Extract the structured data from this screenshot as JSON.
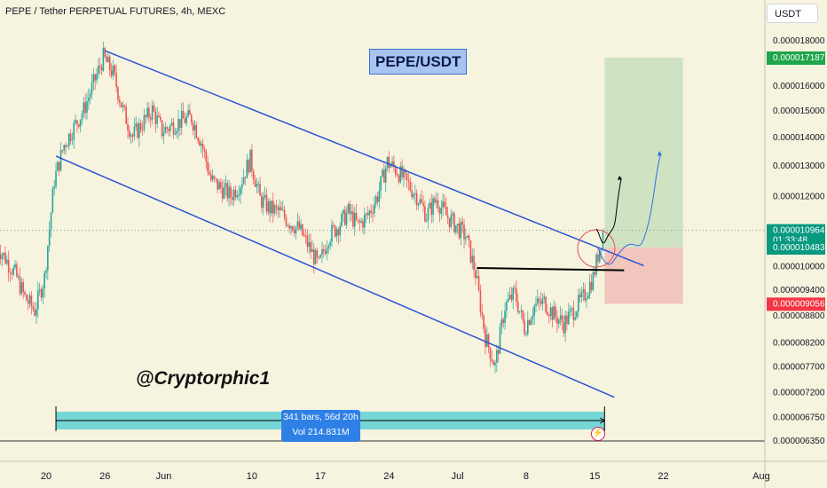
{
  "header": {
    "text": "PEPE / Tether PERPETUAL FUTURES, 4h, MEXC"
  },
  "title_badge": "PEPE/USDT",
  "watermark": "@Cryptorphic1",
  "currency_button": "USDT",
  "range_tooltip": {
    "bars": "341 bars, 56d 20h",
    "vol": "Vol 214.831M"
  },
  "colors": {
    "background": "#f6f3df",
    "up": "#26a69a",
    "down": "#ef5350",
    "channel": "#2855d6",
    "target_zone": "#cfe3c2",
    "stop_zone": "#f1c6bd",
    "range_band": "#5fd0d5",
    "label_current": "#089981",
    "label_stop": "#f23645"
  },
  "chart_data": {
    "type": "candlestick",
    "title": "PEPE / Tether PERPETUAL FUTURES, 4h, MEXC",
    "x_tick_labels": [
      "20",
      "26",
      "Jun",
      "10",
      "17",
      "24",
      "Jul",
      "8",
      "15",
      "22",
      "Aug"
    ],
    "y_tick_labels": [
      "0.000018000",
      "0.000016000",
      "0.000015000",
      "0.000014000",
      "0.000013000",
      "0.000012000",
      "0.000010000",
      "0.000009400",
      "0.000008800",
      "0.000008200",
      "0.000007700",
      "0.000007200",
      "0.000006750",
      "0.000006350"
    ],
    "y_axis_scale": "log",
    "ylim": [
      6.2e-06,
      1.85e-05
    ],
    "price_labels": {
      "target": "0.000017187",
      "current": "0.000010964",
      "countdown": "01:33:48",
      "entry": "0.000010483",
      "stop": "0.000009056"
    },
    "path_points": [
      [
        "May 15",
        1.06e-05
      ],
      [
        "May 17",
        9.8e-06
      ],
      [
        "May 18",
        9.2e-06
      ],
      [
        "May 19",
        8.9e-06
      ],
      [
        "May 20",
        9.7e-06
      ],
      [
        "May 21",
        1.25e-05
      ],
      [
        "May 22",
        1.37e-05
      ],
      [
        "May 24",
        1.5e-05
      ],
      [
        "May 26",
        1.72e-05
      ],
      [
        "May 27",
        1.65e-05
      ],
      [
        "May 28",
        1.5e-05
      ],
      [
        "May 29",
        1.4e-05
      ],
      [
        "May 31",
        1.5e-05
      ],
      [
        "Jun 1",
        1.42e-05
      ],
      [
        "Jun 3",
        1.46e-05
      ],
      [
        "Jun 4",
        1.47e-05
      ],
      [
        "Jun 5",
        1.38e-05
      ],
      [
        "Jun 6",
        1.25e-05
      ],
      [
        "Jun 8",
        1.2e-05
      ],
      [
        "Jun 9",
        1.24e-05
      ],
      [
        "Jun 10",
        1.32e-05
      ],
      [
        "Jun 11",
        1.19e-05
      ],
      [
        "Jun 12",
        1.16e-05
      ],
      [
        "Jun 13",
        1.15e-05
      ],
      [
        "Jun 14",
        1.12e-05
      ],
      [
        "Jun 15",
        1.1e-05
      ],
      [
        "Jun 16",
        1.05e-05
      ],
      [
        "Jun 17",
        1e-05
      ],
      [
        "Jun 18",
        1.08e-05
      ],
      [
        "Jun 19",
        1.11e-05
      ],
      [
        "Jun 20",
        1.15e-05
      ],
      [
        "Jun 21",
        1.11e-05
      ],
      [
        "Jun 22",
        1.14e-05
      ],
      [
        "Jun 23",
        1.2e-05
      ],
      [
        "Jun 24",
        1.31e-05
      ],
      [
        "Jun 25",
        1.28e-05
      ],
      [
        "Jun 26",
        1.24e-05
      ],
      [
        "Jun 27",
        1.2e-05
      ],
      [
        "Jun 28",
        1.14e-05
      ],
      [
        "Jun 29",
        1.19e-05
      ],
      [
        "Jun 30",
        1.14e-05
      ],
      [
        "Jul 1",
        1.11e-05
      ],
      [
        "Jul 2",
        1.08e-05
      ],
      [
        "Jul 3",
        9.8e-06
      ],
      [
        "Jul 4",
        8.3e-06
      ],
      [
        "Jul 5",
        7.7e-06
      ],
      [
        "Jul 6",
        9e-06
      ],
      [
        "Jul 7",
        9.3e-06
      ],
      [
        "Jul 8",
        8.5e-06
      ],
      [
        "Jul 9",
        9e-06
      ],
      [
        "Jul 10",
        9.1e-06
      ],
      [
        "Jul 11",
        8.8e-06
      ],
      [
        "Jul 12",
        8.6e-06
      ],
      [
        "Jul 13",
        8.9e-06
      ],
      [
        "Jul 14",
        9.2e-06
      ],
      [
        "Jul 15",
        9.7e-06
      ],
      [
        "Jul 16",
        1.09e-05
      ]
    ],
    "channel_upper": [
      [
        "May 26",
        1.75e-05
      ],
      [
        "Jul 20",
        1e-05
      ]
    ],
    "channel_lower": [
      [
        "May 21",
        1.33e-05
      ],
      [
        "Jul 17",
        7.1e-06
      ]
    ],
    "horizontal_support": [
      [
        "Jul 3",
        9.94e-06
      ],
      [
        "Jul 18",
        9.88e-06
      ]
    ],
    "range_annotation": {
      "from": "May 21",
      "to": "Jul 16"
    },
    "target_zone": {
      "from": "Jul 16",
      "to": "Jul 24",
      "top": 1.7187e-05,
      "bottom": 1.0483e-05
    },
    "stop_zone": {
      "from": "Jul 16",
      "to": "Jul 24",
      "top": 1.0483e-05,
      "bottom": 9.056e-06
    }
  }
}
